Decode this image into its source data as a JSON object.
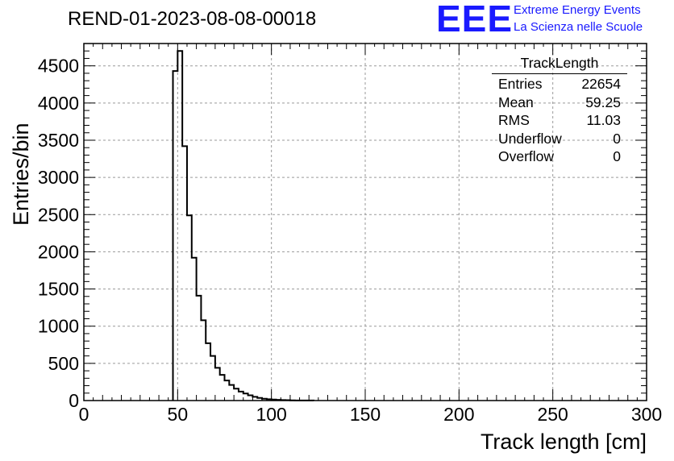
{
  "header": {
    "title": "REND-01-2023-08-08-00018",
    "logo_text": "EEE",
    "logo_line1": "Extreme Energy Events",
    "logo_line2": "La Scienza nelle Scuole"
  },
  "stats": {
    "name": "TrackLength",
    "rows": [
      {
        "label": "Entries",
        "value": "22654"
      },
      {
        "label": "Mean",
        "value": "59.25"
      },
      {
        "label": "RMS",
        "value": "11.03"
      },
      {
        "label": "Underflow",
        "value": "0"
      },
      {
        "label": "Overflow",
        "value": "0"
      }
    ]
  },
  "chart_data": {
    "type": "bar",
    "subtype": "histogram",
    "xlabel": "Track length [cm]",
    "ylabel": "Entries/bin",
    "xlim": [
      0,
      300
    ],
    "ylim": [
      0,
      4800
    ],
    "grid": true,
    "x_ticks": [
      0,
      50,
      100,
      150,
      200,
      250,
      300
    ],
    "y_ticks": [
      0,
      500,
      1000,
      1500,
      2000,
      2500,
      3000,
      3500,
      4000,
      4500
    ],
    "bin_width": 2.5,
    "bin_edges_start": 47.5,
    "values": [
      4430,
      4700,
      3420,
      2490,
      1920,
      1410,
      1080,
      770,
      600,
      440,
      345,
      270,
      210,
      160,
      120,
      95,
      70,
      50,
      35,
      25,
      18,
      13,
      9,
      7,
      5,
      3,
      2,
      1,
      1,
      1
    ]
  }
}
